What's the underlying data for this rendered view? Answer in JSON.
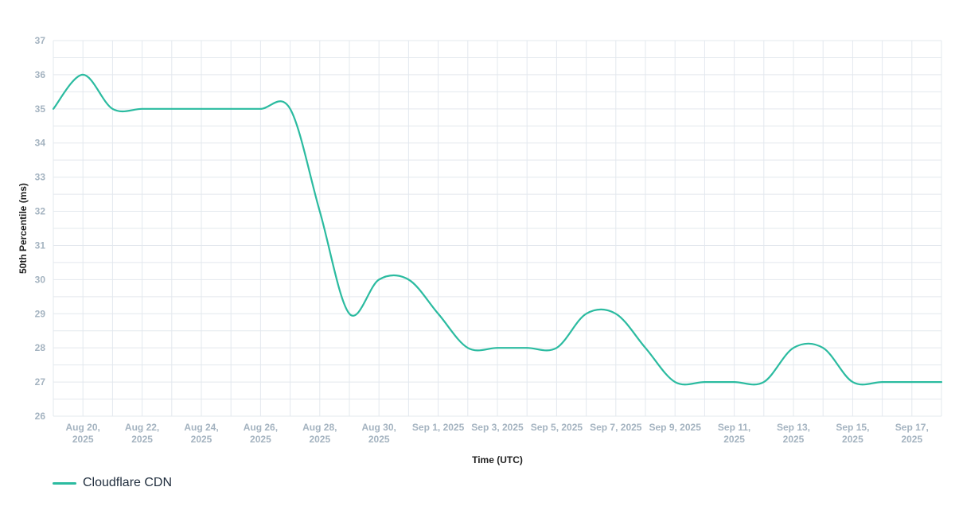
{
  "chart_data": {
    "type": "line",
    "xlabel": "Time (UTC)",
    "ylabel": "50th Percentile (ms)",
    "ylim": [
      26,
      37
    ],
    "yticks": [
      26,
      27,
      28,
      29,
      30,
      31,
      32,
      33,
      34,
      35,
      36,
      37
    ],
    "x_start": "Aug 19, 2025",
    "x_end": "Sep 18, 2025",
    "xticks": [
      {
        "date": "Aug 20, 2025",
        "lines": [
          "Aug 20,",
          "2025"
        ]
      },
      {
        "date": "Aug 22, 2025",
        "lines": [
          "Aug 22,",
          "2025"
        ]
      },
      {
        "date": "Aug 24, 2025",
        "lines": [
          "Aug 24,",
          "2025"
        ]
      },
      {
        "date": "Aug 26, 2025",
        "lines": [
          "Aug 26,",
          "2025"
        ]
      },
      {
        "date": "Aug 28, 2025",
        "lines": [
          "Aug 28,",
          "2025"
        ]
      },
      {
        "date": "Aug 30, 2025",
        "lines": [
          "Aug 30,",
          "2025"
        ]
      },
      {
        "date": "Sep 1, 2025",
        "lines": [
          "Sep 1, 2025"
        ]
      },
      {
        "date": "Sep 3, 2025",
        "lines": [
          "Sep 3, 2025"
        ]
      },
      {
        "date": "Sep 5, 2025",
        "lines": [
          "Sep 5, 2025"
        ]
      },
      {
        "date": "Sep 7, 2025",
        "lines": [
          "Sep 7, 2025"
        ]
      },
      {
        "date": "Sep 9, 2025",
        "lines": [
          "Sep 9, 2025"
        ]
      },
      {
        "date": "Sep 11, 2025",
        "lines": [
          "Sep 11,",
          "2025"
        ]
      },
      {
        "date": "Sep 13, 2025",
        "lines": [
          "Sep 13,",
          "2025"
        ]
      },
      {
        "date": "Sep 15, 2025",
        "lines": [
          "Sep 15,",
          "2025"
        ]
      },
      {
        "date": "Sep 17, 2025",
        "lines": [
          "Sep 17,",
          "2025"
        ]
      }
    ],
    "grid": true,
    "legend_position": "bottom-left",
    "series": [
      {
        "name": "Cloudflare CDN",
        "color": "#2bbba0",
        "x": [
          "Aug 19, 2025",
          "Aug 20, 2025",
          "Aug 21, 2025",
          "Aug 22, 2025",
          "Aug 23, 2025",
          "Aug 24, 2025",
          "Aug 25, 2025",
          "Aug 26, 2025",
          "Aug 27, 2025",
          "Aug 28, 2025",
          "Aug 29, 2025",
          "Aug 30, 2025",
          "Aug 31, 2025",
          "Sep 1, 2025",
          "Sep 2, 2025",
          "Sep 3, 2025",
          "Sep 4, 2025",
          "Sep 5, 2025",
          "Sep 6, 2025",
          "Sep 7, 2025",
          "Sep 8, 2025",
          "Sep 9, 2025",
          "Sep 10, 2025",
          "Sep 11, 2025",
          "Sep 12, 2025",
          "Sep 13, 2025",
          "Sep 14, 2025",
          "Sep 15, 2025",
          "Sep 16, 2025",
          "Sep 17, 2025",
          "Sep 18, 2025"
        ],
        "values": [
          35,
          36,
          35,
          35,
          35,
          35,
          35,
          35,
          35,
          32,
          29,
          30,
          30,
          29,
          28,
          28,
          28,
          28,
          29,
          29,
          28,
          27,
          27,
          27,
          27,
          28,
          28,
          27,
          27,
          27,
          27
        ]
      }
    ]
  }
}
